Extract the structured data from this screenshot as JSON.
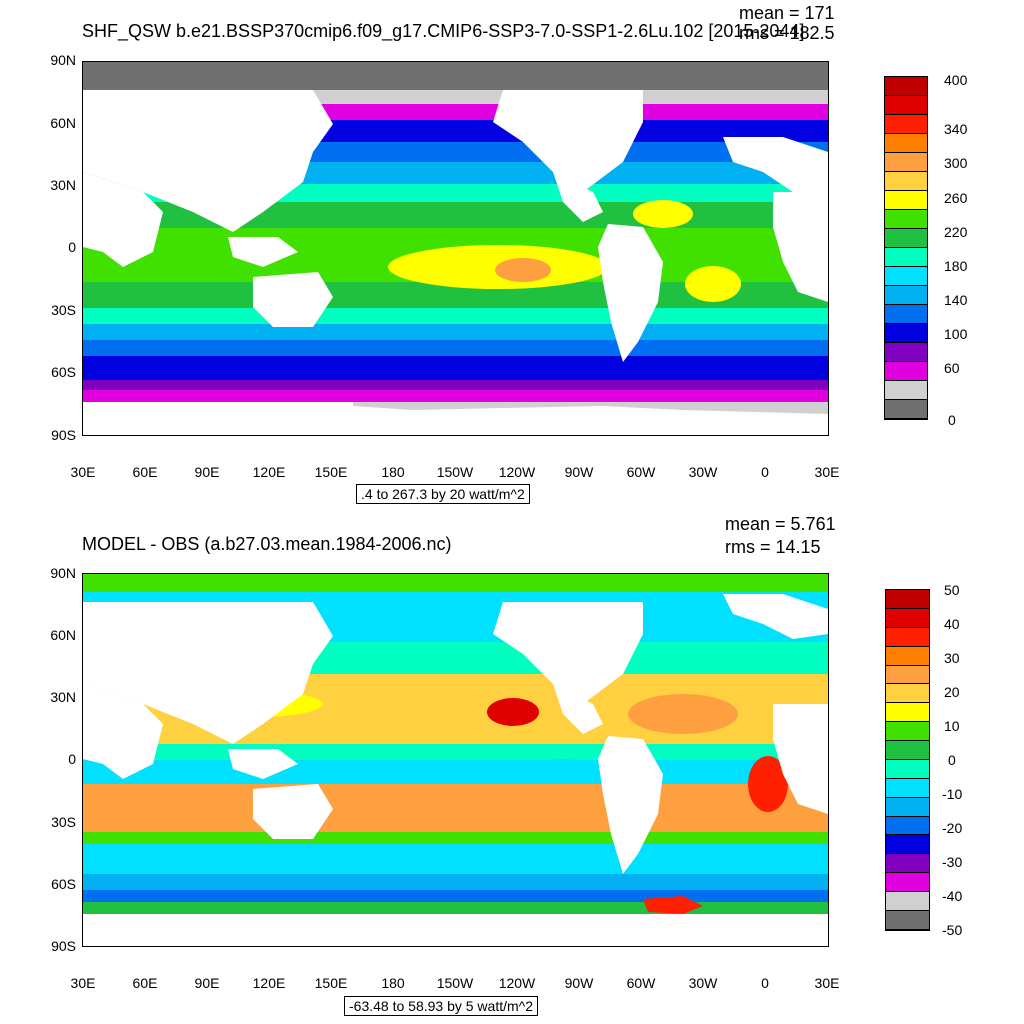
{
  "panels": [
    {
      "title": "SHF_QSW b.e21.BSSP370cmip6.f09_g17.CMIP6-SSP3-7.0-SSP1-2.6Lu.102 [2015-2044]",
      "mean_text": "mean = 171",
      "rms_text": "rms = 182.5",
      "range_text": ".4 to 267.3 by 20 watt/m^2",
      "colorbar": {
        "labels": [
          "400",
          "340",
          "300",
          "260",
          "220",
          "180",
          "140",
          "100",
          "60",
          "0"
        ],
        "colors": [
          "#c00000",
          "#e00000",
          "#ff2000",
          "#ff7f00",
          "#ffa040",
          "#ffd040",
          "#ffff00",
          "#40e000",
          "#20c040",
          "#00ffc0",
          "#00e0ff",
          "#00b0f0",
          "#0070f0",
          "#0000e0",
          "#8000c0",
          "#e000e0",
          "#d0d0d0",
          "#707070"
        ]
      }
    },
    {
      "title": "MODEL - OBS (a.b27.03.mean.1984-2006.nc)",
      "mean_text": "mean = 5.761",
      "rms_text": "rms = 14.15",
      "range_text": "-63.48 to 58.93 by 5 watt/m^2",
      "colorbar": {
        "labels": [
          "50",
          "40",
          "30",
          "20",
          "10",
          "0",
          "-10",
          "-20",
          "-30",
          "-40",
          "-50"
        ],
        "colors": [
          "#c00000",
          "#e00000",
          "#ff2000",
          "#ff7f00",
          "#ffa040",
          "#ffd040",
          "#ffff00",
          "#40e000",
          "#20c040",
          "#00ffc0",
          "#00e0ff",
          "#00b0f0",
          "#0070f0",
          "#0000e0",
          "#8000c0",
          "#e000e0",
          "#d0d0d0",
          "#707070"
        ]
      }
    }
  ],
  "axes": {
    "lat_labels": [
      "90N",
      "60N",
      "30N",
      "0",
      "30S",
      "60S",
      "90S"
    ],
    "lon_labels": [
      "30E",
      "60E",
      "90E",
      "120E",
      "150E",
      "180",
      "150W",
      "120W",
      "90W",
      "60W",
      "30W",
      "0",
      "30E"
    ]
  }
}
